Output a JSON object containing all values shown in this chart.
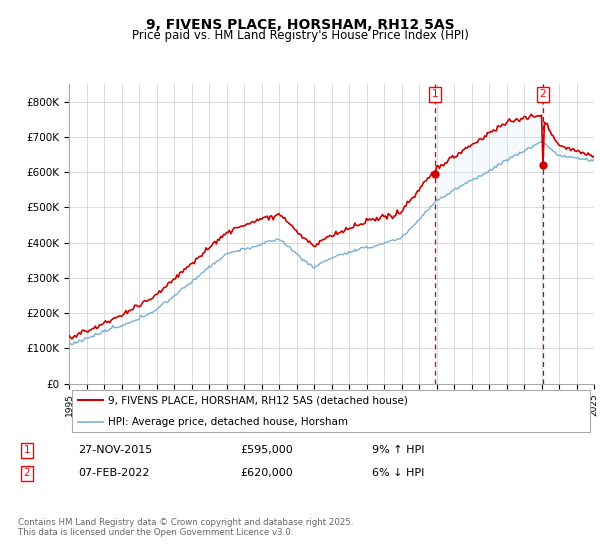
{
  "title": "9, FIVENS PLACE, HORSHAM, RH12 5AS",
  "subtitle": "Price paid vs. HM Land Registry's House Price Index (HPI)",
  "ylim": [
    0,
    850000
  ],
  "yticks": [
    0,
    100000,
    200000,
    300000,
    400000,
    500000,
    600000,
    700000,
    800000
  ],
  "ytick_labels": [
    "£0",
    "£100K",
    "£200K",
    "£300K",
    "£400K",
    "£500K",
    "£600K",
    "£700K",
    "£800K"
  ],
  "legend1": "9, FIVENS PLACE, HORSHAM, RH12 5AS (detached house)",
  "legend2": "HPI: Average price, detached house, Horsham",
  "marker1_date": "27-NOV-2015",
  "marker1_price": 595000,
  "marker1_pct": "9% ↑ HPI",
  "marker2_date": "07-FEB-2022",
  "marker2_price": 620000,
  "marker2_pct": "6% ↓ HPI",
  "footer": "Contains HM Land Registry data © Crown copyright and database right 2025.\nThis data is licensed under the Open Government Licence v3.0.",
  "line_color_red": "#cc0000",
  "line_color_blue": "#7ab0d4",
  "fill_color_blue": "#ddeef8",
  "background_color": "#ffffff",
  "grid_color": "#cccccc",
  "year_start": 1995,
  "year_end": 2025
}
